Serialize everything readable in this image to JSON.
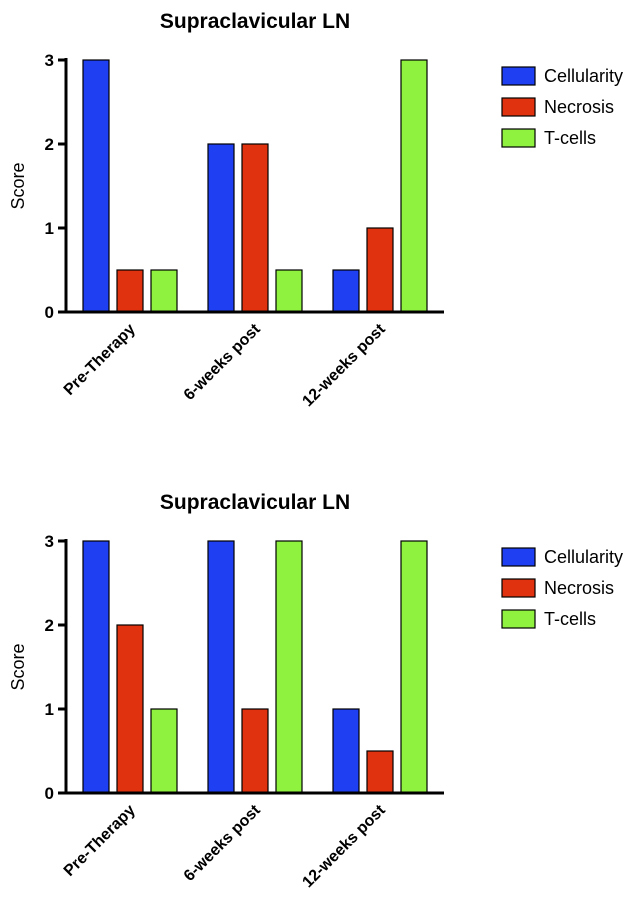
{
  "colors": {
    "Cellularity": "#1f3ff2",
    "Necrosis": "#e0320e",
    "T-cells": "#8ff23e"
  },
  "chart_data": [
    {
      "type": "bar",
      "title": "Supraclavicular LN",
      "ylabel": "Score",
      "xlabel": "",
      "ylim": [
        0,
        3
      ],
      "yticks": [
        "0",
        "1",
        "2",
        "3"
      ],
      "categories": [
        "Pre-Therapy",
        "6-weeks post",
        "12-weeks post"
      ],
      "legend_position": "right",
      "series": [
        {
          "name": "Cellularity",
          "values": [
            3,
            2,
            0.5
          ]
        },
        {
          "name": "Necrosis",
          "values": [
            0.5,
            2,
            1
          ]
        },
        {
          "name": "T-cells",
          "values": [
            0.5,
            0.5,
            3
          ]
        }
      ]
    },
    {
      "type": "bar",
      "title": "Supraclavicular LN",
      "ylabel": "Score",
      "xlabel": "",
      "ylim": [
        0,
        3
      ],
      "yticks": [
        "0",
        "1",
        "2",
        "3"
      ],
      "categories": [
        "Pre-Therapy",
        "6-weeks post",
        "12-weeks post"
      ],
      "legend_position": "right",
      "series": [
        {
          "name": "Cellularity",
          "values": [
            3,
            3,
            1
          ]
        },
        {
          "name": "Necrosis",
          "values": [
            2,
            1,
            0.5
          ]
        },
        {
          "name": "T-cells",
          "values": [
            1,
            3,
            3
          ]
        }
      ]
    }
  ]
}
